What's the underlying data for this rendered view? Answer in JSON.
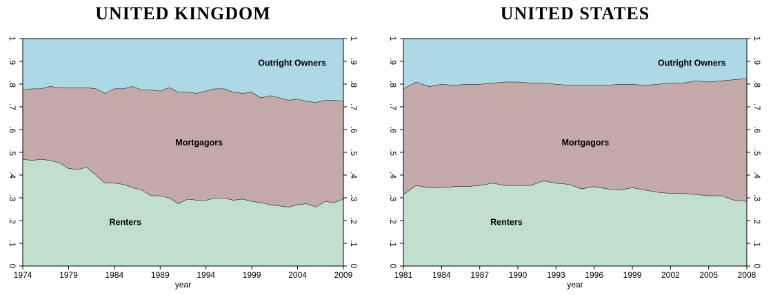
{
  "chart_data": [
    {
      "type": "stacked-area",
      "title": "UNITED KINGDOM",
      "x_label": "year",
      "x": [
        1974,
        1975,
        1976,
        1977,
        1978,
        1979,
        1980,
        1981,
        1982,
        1983,
        1984,
        1985,
        1986,
        1987,
        1988,
        1989,
        1990,
        1991,
        1992,
        1993,
        1994,
        1995,
        1996,
        1997,
        1998,
        1999,
        2000,
        2001,
        2002,
        2003,
        2004,
        2005,
        2006,
        2007,
        2008,
        2009
      ],
      "xlim": [
        1974,
        2009
      ],
      "xticks": [
        1974,
        1979,
        1984,
        1989,
        1994,
        1999,
        2004,
        2009
      ],
      "ylim": [
        0,
        1
      ],
      "yticks": [
        0,
        {
          "value": 0.1,
          "label": ".1"
        },
        {
          "value": 0.2,
          "label": ".2"
        },
        {
          "value": 0.3,
          "label": ".3"
        },
        {
          "value": 0.4,
          "label": ".4"
        },
        {
          "value": 0.5,
          "label": ".5"
        },
        {
          "value": 0.6,
          "label": ".6"
        },
        {
          "value": 0.7,
          "label": ".7"
        },
        {
          "value": 0.8,
          "label": ".8"
        },
        {
          "value": 0.9,
          "label": ".9"
        },
        1
      ],
      "series": [
        {
          "name": "Renters",
          "color": "#c1dfcc",
          "values": [
            0.47,
            0.465,
            0.47,
            0.465,
            0.455,
            0.43,
            0.425,
            0.435,
            0.4,
            0.365,
            0.365,
            0.36,
            0.345,
            0.335,
            0.31,
            0.31,
            0.3,
            0.275,
            0.295,
            0.29,
            0.29,
            0.3,
            0.3,
            0.29,
            0.295,
            0.285,
            0.28,
            0.27,
            0.265,
            0.26,
            0.27,
            0.275,
            0.26,
            0.285,
            0.28,
            0.295
          ]
        },
        {
          "name": "Mortgagors",
          "color": "#c4a9a9",
          "values": [
            0.305,
            0.315,
            0.31,
            0.325,
            0.33,
            0.355,
            0.36,
            0.35,
            0.38,
            0.395,
            0.415,
            0.42,
            0.445,
            0.44,
            0.465,
            0.46,
            0.485,
            0.49,
            0.47,
            0.47,
            0.48,
            0.48,
            0.48,
            0.475,
            0.465,
            0.48,
            0.46,
            0.48,
            0.475,
            0.47,
            0.465,
            0.45,
            0.46,
            0.445,
            0.45,
            0.43
          ]
        },
        {
          "name": "Outright Owners",
          "color": "#add8e6",
          "values": [
            0.225,
            0.22,
            0.22,
            0.21,
            0.215,
            0.215,
            0.215,
            0.215,
            0.22,
            0.24,
            0.22,
            0.22,
            0.21,
            0.225,
            0.225,
            0.23,
            0.215,
            0.235,
            0.235,
            0.24,
            0.23,
            0.22,
            0.22,
            0.235,
            0.24,
            0.235,
            0.26,
            0.25,
            0.26,
            0.27,
            0.265,
            0.275,
            0.28,
            0.27,
            0.27,
            0.275
          ]
        }
      ]
    },
    {
      "type": "stacked-area",
      "title": "UNITED STATES",
      "x_label": "year",
      "x": [
        1981,
        1982,
        1983,
        1984,
        1985,
        1986,
        1987,
        1988,
        1989,
        1990,
        1991,
        1992,
        1993,
        1994,
        1995,
        1996,
        1997,
        1998,
        1999,
        2000,
        2001,
        2002,
        2003,
        2004,
        2005,
        2006,
        2007,
        2008
      ],
      "xlim": [
        1981,
        2008
      ],
      "xticks": [
        1981,
        1984,
        1987,
        1990,
        1993,
        1996,
        1999,
        2002,
        2005,
        2008
      ],
      "ylim": [
        0,
        1
      ],
      "yticks": [
        0,
        {
          "value": 0.1,
          "label": ".1"
        },
        {
          "value": 0.2,
          "label": ".2"
        },
        {
          "value": 0.3,
          "label": ".3"
        },
        {
          "value": 0.4,
          "label": ".4"
        },
        {
          "value": 0.5,
          "label": ".5"
        },
        {
          "value": 0.6,
          "label": ".6"
        },
        {
          "value": 0.7,
          "label": ".7"
        },
        {
          "value": 0.8,
          "label": ".8"
        },
        {
          "value": 0.9,
          "label": ".9"
        },
        1
      ],
      "series": [
        {
          "name": "Renters",
          "color": "#c1dfcc",
          "values": [
            0.315,
            0.355,
            0.345,
            0.345,
            0.35,
            0.35,
            0.355,
            0.365,
            0.355,
            0.355,
            0.355,
            0.375,
            0.365,
            0.36,
            0.34,
            0.35,
            0.34,
            0.335,
            0.345,
            0.335,
            0.325,
            0.32,
            0.32,
            0.315,
            0.31,
            0.31,
            0.29,
            0.285
          ]
        },
        {
          "name": "Mortgagors",
          "color": "#c4a9a9",
          "values": [
            0.465,
            0.455,
            0.445,
            0.455,
            0.445,
            0.45,
            0.445,
            0.44,
            0.455,
            0.455,
            0.45,
            0.43,
            0.435,
            0.435,
            0.455,
            0.445,
            0.455,
            0.465,
            0.455,
            0.46,
            0.475,
            0.485,
            0.485,
            0.5,
            0.5,
            0.505,
            0.53,
            0.54
          ]
        },
        {
          "name": "Outright Owners",
          "color": "#add8e6",
          "values": [
            0.22,
            0.19,
            0.21,
            0.2,
            0.205,
            0.2,
            0.2,
            0.195,
            0.19,
            0.19,
            0.195,
            0.195,
            0.2,
            0.205,
            0.205,
            0.205,
            0.205,
            0.2,
            0.2,
            0.205,
            0.2,
            0.195,
            0.195,
            0.185,
            0.19,
            0.185,
            0.18,
            0.175
          ]
        }
      ]
    }
  ]
}
